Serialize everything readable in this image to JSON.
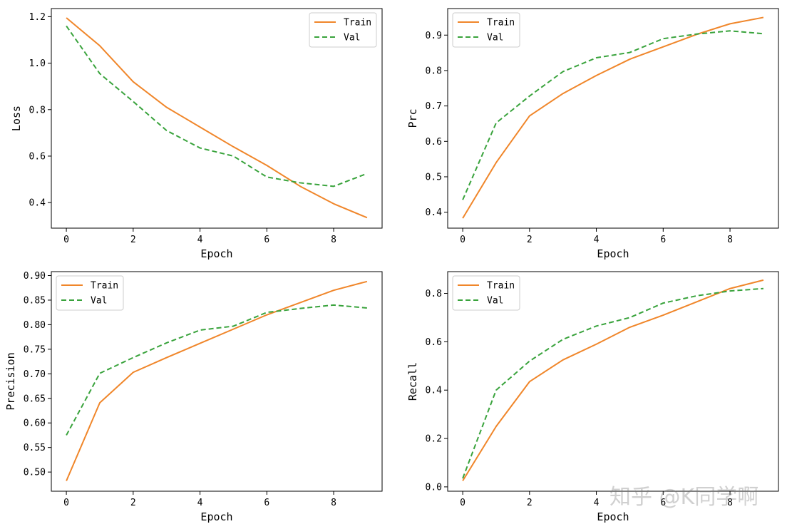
{
  "watermark": "知乎 @K同学啊",
  "colors": {
    "train": "#f0862a",
    "val": "#39a33c"
  },
  "chart_data": [
    {
      "type": "line",
      "xlabel": "Epoch",
      "ylabel": "Loss",
      "xlim": [
        -0.45,
        9.45
      ],
      "ylim": [
        0.29,
        1.235
      ],
      "xticks": [
        0,
        2,
        4,
        6,
        8
      ],
      "yticks": [
        0.4,
        0.6,
        0.8,
        1.0,
        1.2
      ],
      "ytick_labels": [
        "0.4",
        "0.6",
        "0.8",
        "1.0",
        "1.2"
      ],
      "legend_position": "top-right",
      "x": [
        0,
        1,
        2,
        3,
        4,
        5,
        6,
        7,
        8,
        9
      ],
      "series": [
        {
          "name": "Train",
          "style": "solid",
          "values": [
            1.195,
            1.075,
            0.92,
            0.81,
            0.725,
            0.64,
            0.56,
            0.47,
            0.395,
            0.335
          ]
        },
        {
          "name": "Val",
          "style": "dashed",
          "values": [
            1.16,
            0.955,
            0.835,
            0.71,
            0.635,
            0.6,
            0.51,
            0.485,
            0.47,
            0.525
          ]
        }
      ]
    },
    {
      "type": "line",
      "xlabel": "Epoch",
      "ylabel": "Prc",
      "xlim": [
        -0.45,
        9.45
      ],
      "ylim": [
        0.355,
        0.975
      ],
      "xticks": [
        0,
        2,
        4,
        6,
        8
      ],
      "yticks": [
        0.4,
        0.5,
        0.6,
        0.7,
        0.8,
        0.9
      ],
      "ytick_labels": [
        "0.4",
        "0.5",
        "0.6",
        "0.7",
        "0.8",
        "0.9"
      ],
      "legend_position": "top-left",
      "x": [
        0,
        1,
        2,
        3,
        4,
        5,
        6,
        7,
        8,
        9
      ],
      "series": [
        {
          "name": "Train",
          "style": "solid",
          "values": [
            0.383,
            0.54,
            0.672,
            0.735,
            0.786,
            0.832,
            0.867,
            0.902,
            0.932,
            0.95
          ]
        },
        {
          "name": "Val",
          "style": "dashed",
          "values": [
            0.435,
            0.652,
            0.728,
            0.797,
            0.836,
            0.851,
            0.89,
            0.903,
            0.912,
            0.904
          ]
        }
      ]
    },
    {
      "type": "line",
      "xlabel": "Epoch",
      "ylabel": "Precision",
      "xlim": [
        -0.45,
        9.45
      ],
      "ylim": [
        0.461,
        0.908
      ],
      "xticks": [
        0,
        2,
        4,
        6,
        8
      ],
      "yticks": [
        0.5,
        0.55,
        0.6,
        0.65,
        0.7,
        0.75,
        0.8,
        0.85,
        0.9
      ],
      "ytick_labels": [
        "0.50",
        "0.55",
        "0.60",
        "0.65",
        "0.70",
        "0.75",
        "0.80",
        "0.85",
        "0.90"
      ],
      "legend_position": "top-left",
      "x": [
        0,
        1,
        2,
        3,
        4,
        5,
        6,
        7,
        8,
        9
      ],
      "series": [
        {
          "name": "Train",
          "style": "solid",
          "values": [
            0.482,
            0.641,
            0.703,
            0.733,
            0.762,
            0.791,
            0.82,
            0.845,
            0.87,
            0.888
          ]
        },
        {
          "name": "Val",
          "style": "dashed",
          "values": [
            0.575,
            0.701,
            0.733,
            0.763,
            0.789,
            0.797,
            0.825,
            0.833,
            0.84,
            0.834
          ]
        }
      ]
    },
    {
      "type": "line",
      "xlabel": "Epoch",
      "ylabel": "Recall",
      "xlim": [
        -0.45,
        9.45
      ],
      "ylim": [
        -0.018,
        0.89
      ],
      "xticks": [
        0,
        2,
        4,
        6,
        8
      ],
      "yticks": [
        0.0,
        0.2,
        0.4,
        0.6,
        0.8
      ],
      "ytick_labels": [
        "0.0",
        "0.2",
        "0.4",
        "0.6",
        "0.8"
      ],
      "legend_position": "top-left",
      "x": [
        0,
        1,
        2,
        3,
        4,
        5,
        6,
        7,
        8,
        9
      ],
      "series": [
        {
          "name": "Train",
          "style": "solid",
          "values": [
            0.025,
            0.25,
            0.435,
            0.525,
            0.59,
            0.66,
            0.71,
            0.765,
            0.82,
            0.855
          ]
        },
        {
          "name": "Val",
          "style": "dashed",
          "values": [
            0.035,
            0.4,
            0.52,
            0.61,
            0.665,
            0.7,
            0.76,
            0.79,
            0.81,
            0.82
          ]
        }
      ]
    }
  ]
}
